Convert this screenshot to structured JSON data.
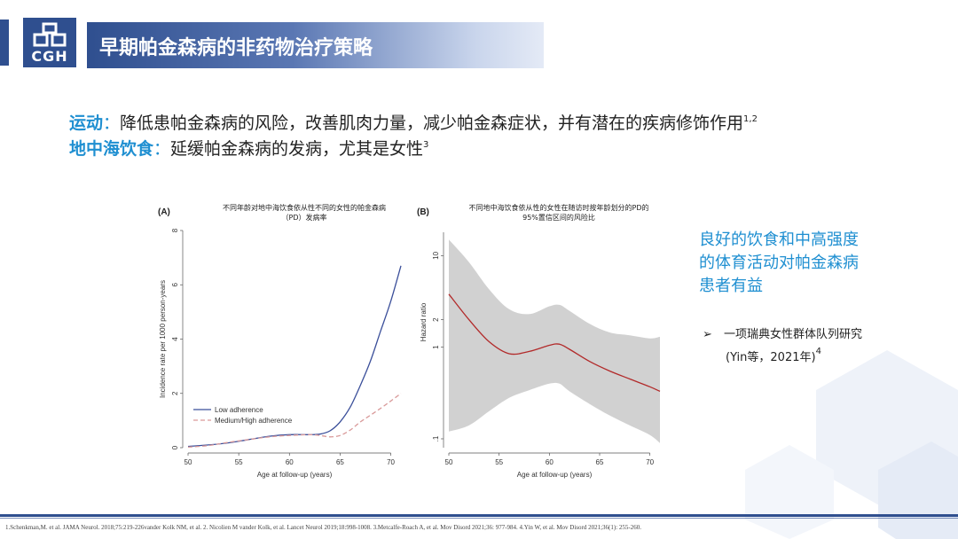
{
  "header": {
    "logo_text": "CGH",
    "title": "早期帕金森病的非药物治疗策略"
  },
  "bullets": [
    {
      "keyword": "运动",
      "separator": "：",
      "text": "降低患帕金森病的风险，改善肌肉力量，减少帕金森症状，并有潜在的疾病修饰作用",
      "sup": "1,2"
    },
    {
      "keyword": "地中海饮食",
      "separator": "：",
      "text": "延缓帕金森病的发病，尤其是女性",
      "sup": "3"
    }
  ],
  "callout": {
    "text": "良好的饮食和中高强度的体育活动对帕金森病患者有益",
    "line1": "良好的饮食和中高强度",
    "line2": "的体育活动对帕金森病",
    "line3": "患者有益"
  },
  "study": {
    "arrow": "➢",
    "line1": "一项瑞典女性群体队列研究",
    "line2": "(Yin等，2021年)",
    "sup": "4"
  },
  "references": "1.Schenkman,M. et al. JAMA Neurol. 2018;75:219-226vander Kolk NM, et al.   2. Nicolien M vander Kolk, et al. Lancet Neurol 2019;18:998-1008.   3.Metcalfe-Roach A, et al. Mov Disord 2021;36: 977-984.   4.Yin W, et al. Mov Disord 2021;36(1): 255-260.",
  "colors": {
    "brand": "#2f4f8f",
    "accent": "#1f8fd1",
    "line_low": "#3b4f9a",
    "line_high": "#d99a9a",
    "hr_line": "#b22a2a",
    "ci_band": "#cccccc"
  },
  "chart_data": [
    {
      "type": "line",
      "panel": "(A)",
      "title_line1": "不同年龄对地中海饮食依从性不同的女性的帕金森病",
      "title_line2": "（PD）发病率",
      "xlabel": "Age at follow-up (years)",
      "ylabel": "Incidence rate per 1000 person-years",
      "xlim": [
        50,
        71
      ],
      "ylim": [
        0,
        8
      ],
      "xticks": [
        "50",
        "55",
        "60",
        "65",
        "70"
      ],
      "yticks": [
        "0",
        "2",
        "4",
        "6",
        "8"
      ],
      "legend_position": "bottom-left",
      "series": [
        {
          "name": "Low adherence",
          "x": [
            50,
            52,
            54,
            56,
            58,
            60,
            62,
            63,
            64,
            65,
            66,
            67,
            68,
            69,
            70,
            71
          ],
          "y": [
            0.05,
            0.1,
            0.18,
            0.3,
            0.42,
            0.48,
            0.48,
            0.5,
            0.62,
            0.95,
            1.5,
            2.3,
            3.2,
            4.3,
            5.4,
            6.7
          ]
        },
        {
          "name": "Medium/High adherence",
          "x": [
            50,
            52,
            54,
            56,
            58,
            60,
            62,
            63,
            64,
            65,
            66,
            67,
            68,
            69,
            70,
            71
          ],
          "y": [
            0.02,
            0.08,
            0.2,
            0.3,
            0.4,
            0.45,
            0.48,
            0.45,
            0.4,
            0.45,
            0.65,
            0.95,
            1.2,
            1.45,
            1.72,
            2.0
          ]
        }
      ]
    },
    {
      "type": "line",
      "panel": "(B)",
      "title_line1": "不同地中海饮食依从性的女性在随访时按年龄划分的PD的",
      "title_line2": "95%置信区间的风险比",
      "xlabel": "Age at follow-up (years)",
      "ylabel": "Hazard ratio",
      "scale": "log",
      "xlim": [
        50,
        71
      ],
      "ylim": [
        0.08,
        18
      ],
      "xticks": [
        "50",
        "55",
        "60",
        "65",
        "70"
      ],
      "yticks": [
        ".1",
        "1",
        "2",
        "10"
      ],
      "series": [
        {
          "name": "HR",
          "x": [
            50,
            52,
            54,
            56,
            58,
            60,
            61,
            62,
            64,
            66,
            68,
            70,
            71
          ],
          "y": [
            3.8,
            2.0,
            1.15,
            0.85,
            0.9,
            1.05,
            1.08,
            0.95,
            0.7,
            0.55,
            0.45,
            0.37,
            0.33
          ]
        },
        {
          "name": "CI upper",
          "x": [
            50,
            52,
            54,
            56,
            58,
            60,
            61,
            62,
            64,
            66,
            68,
            70,
            71
          ],
          "y": [
            15.0,
            8.5,
            4.3,
            2.6,
            2.3,
            2.8,
            2.9,
            2.5,
            1.8,
            1.45,
            1.35,
            1.25,
            1.3
          ]
        },
        {
          "name": "CI lower",
          "x": [
            50,
            52,
            54,
            56,
            58,
            60,
            61,
            62,
            64,
            66,
            68,
            70,
            71
          ],
          "y": [
            0.12,
            0.14,
            0.2,
            0.28,
            0.34,
            0.4,
            0.4,
            0.33,
            0.24,
            0.18,
            0.14,
            0.11,
            0.09
          ]
        }
      ]
    }
  ]
}
